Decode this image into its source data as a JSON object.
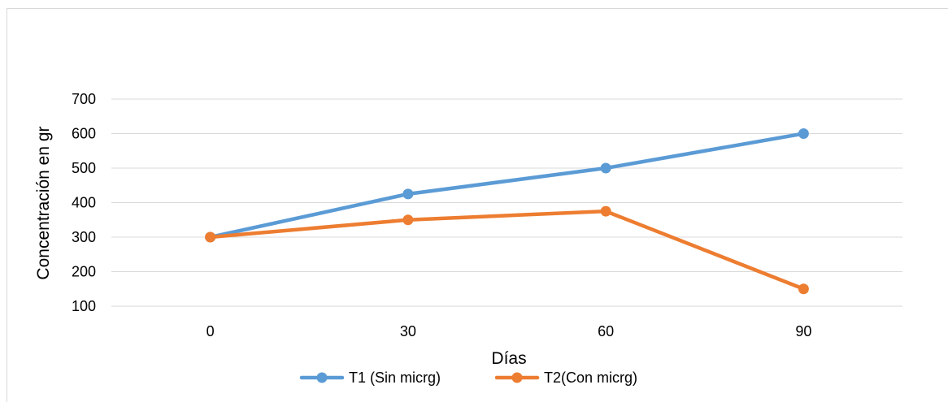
{
  "chart_data": {
    "type": "line",
    "title": "",
    "xlabel": "Días",
    "ylabel": "Concentración en gr",
    "categories": [
      "0",
      "30",
      "60",
      "90"
    ],
    "ylim": [
      100,
      700
    ],
    "yticks": [
      100,
      200,
      300,
      400,
      500,
      600,
      700
    ],
    "grid": true,
    "legend_position": "bottom",
    "series": [
      {
        "name": "T1 (Sin micrg)",
        "values": [
          300,
          425,
          500,
          600
        ],
        "color": "#5b9bd5"
      },
      {
        "name": "T2(Con micrg)",
        "values": [
          300,
          350,
          375,
          150
        ],
        "color": "#ed7d31"
      }
    ]
  }
}
